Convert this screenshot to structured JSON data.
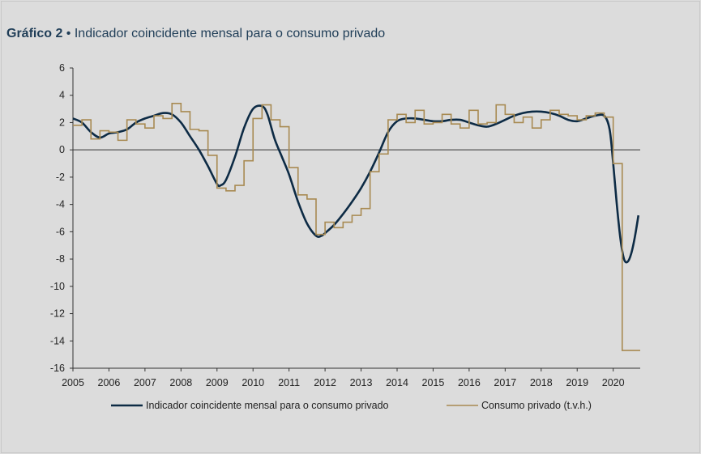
{
  "title_prefix": "Gráfico 2",
  "title_separator": " • ",
  "title_text": "Indicador coincidente mensal para o consumo privado",
  "colors": {
    "indicator": "#0d2b45",
    "consumption": "#a88a52",
    "background": "#dcdcdc",
    "title": "#1f3d57"
  },
  "chart_data": {
    "type": "line",
    "title": "Indicador coincidente mensal para o consumo privado",
    "xlabel": "",
    "ylabel": "",
    "xlim": [
      2005,
      2020.75
    ],
    "ylim": [
      -16,
      6
    ],
    "x_ticks": [
      "2005",
      "2006",
      "2007",
      "2008",
      "2009",
      "2010",
      "2011",
      "2012",
      "2013",
      "2014",
      "2015",
      "2016",
      "2017",
      "2018",
      "2019",
      "2020"
    ],
    "y_ticks": [
      "6",
      "4",
      "2",
      "0",
      "-2",
      "-4",
      "-6",
      "-8",
      "-10",
      "-12",
      "-14",
      "-16"
    ],
    "grid": false,
    "legend_position": "bottom",
    "series": [
      {
        "name": "Indicador coincidente mensal para o consumo privado",
        "style": "smooth-line",
        "x": [
          2005.0,
          2005.25,
          2005.5,
          2005.75,
          2006.0,
          2006.25,
          2006.5,
          2006.75,
          2007.0,
          2007.25,
          2007.5,
          2007.75,
          2008.0,
          2008.25,
          2008.5,
          2008.75,
          2009.0,
          2009.1,
          2009.25,
          2009.5,
          2009.75,
          2010.0,
          2010.25,
          2010.4,
          2010.6,
          2010.8,
          2011.0,
          2011.25,
          2011.5,
          2011.75,
          2011.9,
          2012.0,
          2012.25,
          2012.5,
          2012.75,
          2013.0,
          2013.25,
          2013.5,
          2013.75,
          2014.0,
          2014.25,
          2014.5,
          2014.75,
          2015.0,
          2015.25,
          2015.5,
          2015.75,
          2016.0,
          2016.25,
          2016.5,
          2016.75,
          2017.0,
          2017.25,
          2017.5,
          2017.75,
          2018.0,
          2018.25,
          2018.5,
          2018.75,
          2019.0,
          2019.25,
          2019.5,
          2019.75,
          2019.9,
          2020.0,
          2020.1,
          2020.2,
          2020.3,
          2020.4,
          2020.5,
          2020.6,
          2020.7
        ],
        "values": [
          2.3,
          2.0,
          1.3,
          0.9,
          1.2,
          1.3,
          1.5,
          2.0,
          2.3,
          2.5,
          2.7,
          2.6,
          2.0,
          1.0,
          0.0,
          -1.2,
          -2.5,
          -2.6,
          -2.2,
          -0.5,
          1.6,
          3.0,
          3.2,
          2.6,
          0.8,
          -0.5,
          -1.8,
          -3.8,
          -5.4,
          -6.3,
          -6.3,
          -6.1,
          -5.5,
          -4.7,
          -3.8,
          -2.8,
          -1.6,
          -0.2,
          1.3,
          2.1,
          2.3,
          2.3,
          2.2,
          2.1,
          2.1,
          2.2,
          2.2,
          2.0,
          1.8,
          1.7,
          1.9,
          2.2,
          2.5,
          2.7,
          2.8,
          2.8,
          2.7,
          2.5,
          2.2,
          2.1,
          2.3,
          2.5,
          2.5,
          1.5,
          -1.0,
          -4.0,
          -6.5,
          -8.0,
          -8.2,
          -7.6,
          -6.4,
          -4.8
        ]
      },
      {
        "name": "Consumo privado (t.v.h.)",
        "style": "step",
        "x": [
          2005.0,
          2005.25,
          2005.5,
          2005.75,
          2006.0,
          2006.25,
          2006.5,
          2006.75,
          2007.0,
          2007.25,
          2007.5,
          2007.75,
          2008.0,
          2008.25,
          2008.5,
          2008.75,
          2009.0,
          2009.25,
          2009.5,
          2009.75,
          2010.0,
          2010.25,
          2010.5,
          2010.75,
          2011.0,
          2011.25,
          2011.5,
          2011.75,
          2012.0,
          2012.25,
          2012.5,
          2012.75,
          2013.0,
          2013.25,
          2013.5,
          2013.75,
          2014.0,
          2014.25,
          2014.5,
          2014.75,
          2015.0,
          2015.25,
          2015.5,
          2015.75,
          2016.0,
          2016.25,
          2016.5,
          2016.75,
          2017.0,
          2017.25,
          2017.5,
          2017.75,
          2018.0,
          2018.25,
          2018.5,
          2018.75,
          2019.0,
          2019.25,
          2019.5,
          2019.75,
          2020.0,
          2020.25,
          2020.5,
          2020.75
        ],
        "values": [
          1.8,
          2.2,
          0.8,
          1.4,
          1.3,
          0.7,
          2.2,
          1.9,
          1.6,
          2.5,
          2.3,
          3.4,
          2.8,
          1.5,
          1.4,
          -0.4,
          -2.8,
          -3.0,
          -2.6,
          -0.8,
          2.3,
          3.3,
          2.2,
          1.7,
          -1.3,
          -3.3,
          -3.6,
          -6.2,
          -5.3,
          -5.7,
          -5.3,
          -4.8,
          -4.3,
          -1.6,
          -0.3,
          2.2,
          2.6,
          2.0,
          2.9,
          1.9,
          2.0,
          2.6,
          1.9,
          1.6,
          2.9,
          1.9,
          2.0,
          3.3,
          2.6,
          2.0,
          2.4,
          1.6,
          2.2,
          2.9,
          2.6,
          2.5,
          2.2,
          2.5,
          2.7,
          2.4,
          -1.0,
          -14.7,
          -14.7,
          -14.7
        ]
      }
    ]
  }
}
